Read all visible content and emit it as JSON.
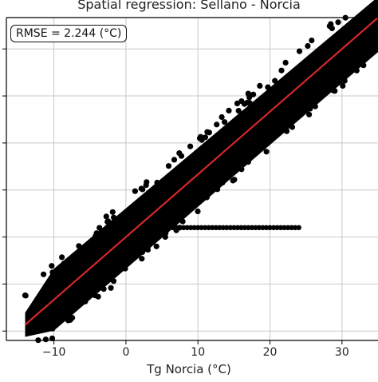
{
  "chart_data": {
    "type": "scatter",
    "title": "Spatial regression: Sellano - Norcia",
    "xlabel": "Tg Norcia (°C)",
    "ylabel": "",
    "annotation": "RMSE = 2.244 (°C)",
    "xlim": [
      -16.6,
      35
    ],
    "ylim": [
      -16.5,
      35
    ],
    "xticks": [
      -10,
      0,
      10,
      20,
      30
    ],
    "xtick_labels": [
      "−10",
      "0",
      "10",
      "20",
      "30"
    ],
    "yticks": [
      -15,
      -7.5,
      0,
      7.5,
      15,
      22.5,
      30
    ],
    "grid": true,
    "point_color": "#000000",
    "line_color": "#d62728",
    "regression_line": {
      "slope": 1.0,
      "intercept": 0.0,
      "x_range": [
        -14,
        35
      ]
    },
    "point_cloud": {
      "centerline": {
        "slope": 1.0,
        "intercept": 0.0
      },
      "x_range": [
        -14,
        35
      ],
      "half_spread": 5.5
    },
    "constant_band": {
      "y": 1.5,
      "x_range": [
        5,
        24
      ]
    }
  }
}
